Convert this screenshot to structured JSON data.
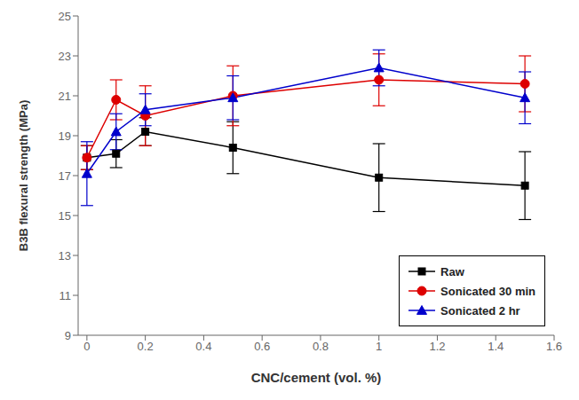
{
  "chart_data": {
    "type": "line",
    "title": "",
    "xlabel": "CNC/cement (vol. %)",
    "ylabel": "B3B flexural strength (MPa)",
    "xlim": [
      -0.03,
      1.6
    ],
    "ylim": [
      9,
      25
    ],
    "xticks": [
      0,
      0.2,
      0.4,
      0.6,
      0.8,
      1,
      1.2,
      1.4,
      1.6
    ],
    "yticks": [
      9,
      11,
      13,
      15,
      17,
      19,
      21,
      23,
      25
    ],
    "grid": false,
    "legend": "lower right",
    "x": [
      0.0,
      0.1,
      0.2,
      0.5,
      1.0,
      1.5
    ],
    "series": [
      {
        "name": "Raw",
        "color": "black",
        "marker": "square",
        "values": [
          17.9,
          18.1,
          19.2,
          18.4,
          16.9,
          16.5
        ],
        "errors": [
          0.6,
          0.7,
          0.7,
          1.3,
          1.7,
          1.7
        ]
      },
      {
        "name": "Sonicated 30 min",
        "color": "#dd0000",
        "marker": "circle",
        "values": [
          17.9,
          20.8,
          20.0,
          21.0,
          21.8,
          21.6
        ],
        "errors": [
          0.6,
          1.0,
          1.5,
          1.5,
          1.3,
          1.4
        ]
      },
      {
        "name": "Sonicated 2 hr",
        "color": "#0000cc",
        "marker": "triangle",
        "values": [
          17.1,
          19.2,
          20.3,
          20.9,
          22.4,
          20.9
        ],
        "errors": [
          1.6,
          0.9,
          0.8,
          1.1,
          0.9,
          1.3
        ]
      }
    ]
  }
}
